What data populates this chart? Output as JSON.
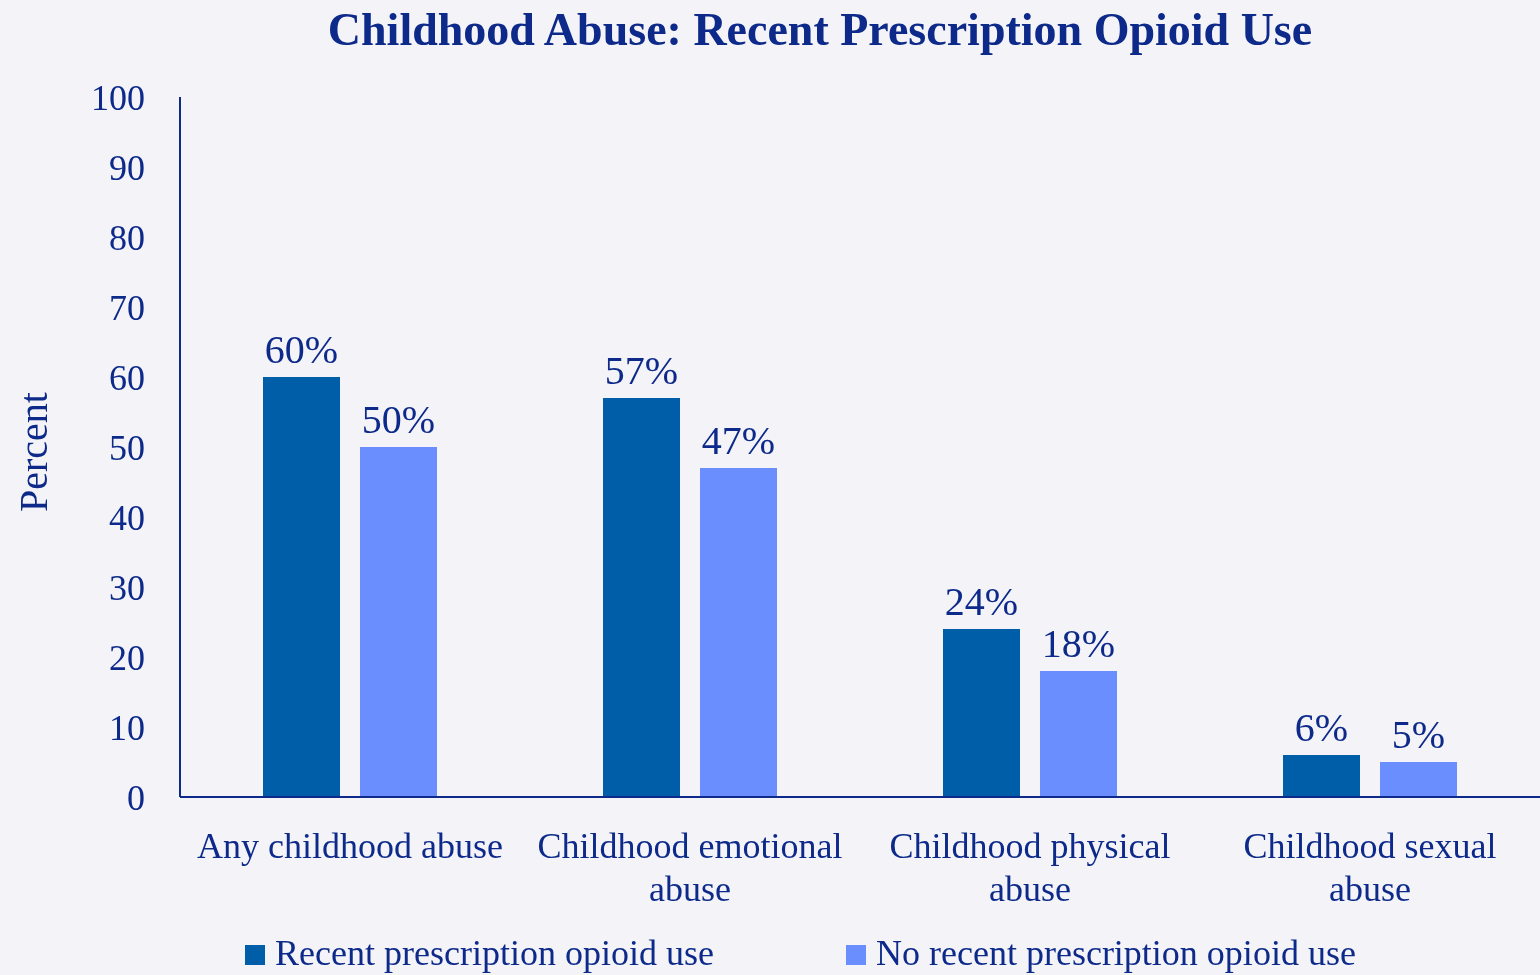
{
  "chart_data": {
    "type": "bar",
    "title": "Childhood Abuse: Recent Prescription Opioid Use",
    "ylabel": "Percent",
    "categories": [
      "Any childhood abuse",
      "Childhood emotional abuse",
      "Childhood physical abuse",
      "Childhood sexual abuse"
    ],
    "series": [
      {
        "name": "Recent prescription opioid use",
        "color": "#005ea8",
        "values": [
          60,
          57,
          24,
          6
        ],
        "value_labels": [
          "60%",
          "57%",
          "24%",
          "6%"
        ]
      },
      {
        "name": "No recent prescription opioid use",
        "color": "#6b8eff",
        "values": [
          50,
          47,
          18,
          5
        ],
        "value_labels": [
          "50%",
          "47%",
          "18%",
          "5%"
        ]
      }
    ],
    "ylim": [
      0,
      100
    ],
    "yticks": [
      0,
      10,
      20,
      30,
      40,
      50,
      60,
      70,
      80,
      90,
      100
    ],
    "grid": false,
    "legend": "bottom"
  }
}
